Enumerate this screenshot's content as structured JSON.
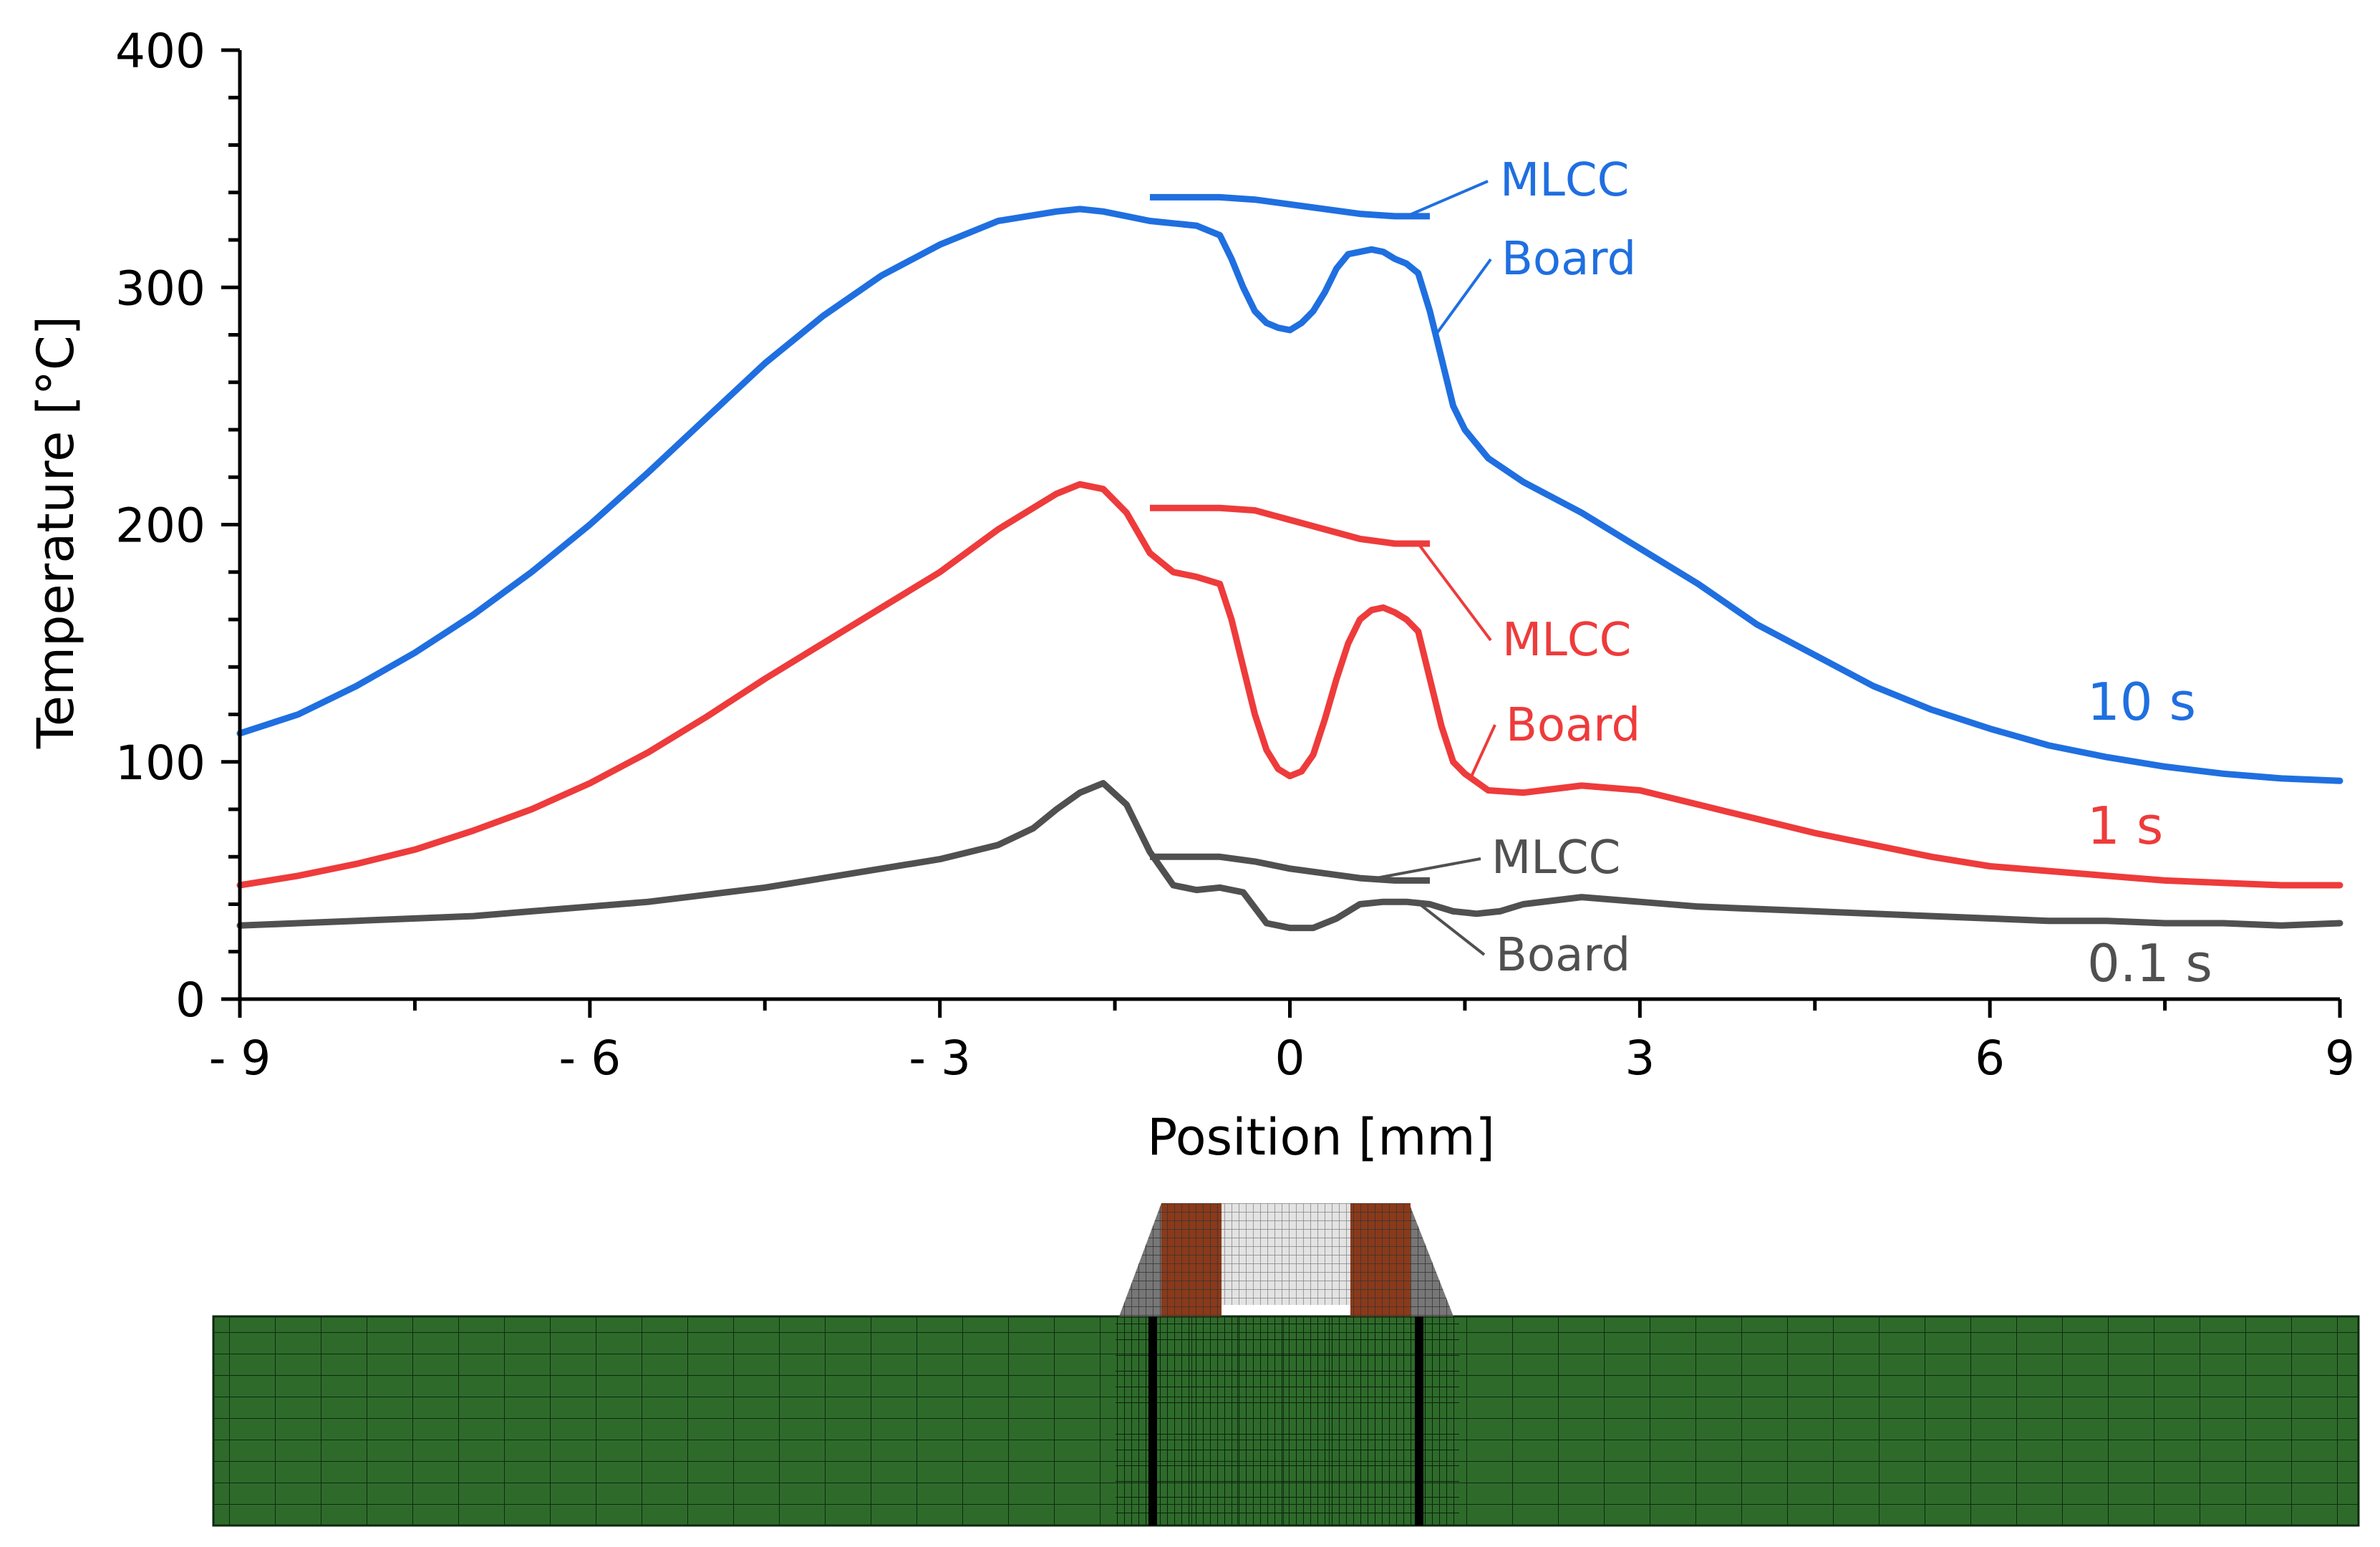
{
  "chart_data": {
    "type": "line",
    "title": "",
    "xlabel": "Position [mm]",
    "ylabel": "Temperature [°C]",
    "xlim": [
      -9,
      9
    ],
    "ylim": [
      0,
      400
    ],
    "grid": false,
    "x_ticks": [
      -9,
      -6,
      -3,
      0,
      3,
      6,
      9
    ],
    "x_tick_labels": [
      "- 9",
      "- 6",
      "- 3",
      "0",
      "3",
      "6",
      "9"
    ],
    "y_ticks": [
      0,
      100,
      200,
      300,
      400
    ],
    "y_tick_labels": [
      "0",
      "100",
      "200",
      "300",
      "400"
    ],
    "series": [
      {
        "name": "10 s",
        "color": "#1f6fe0",
        "board_label": "Board",
        "mlcc_label": "MLCC",
        "board": {
          "x": [
            -9,
            -8.5,
            -8,
            -7.5,
            -7,
            -6.5,
            -6,
            -5.5,
            -5,
            -4.5,
            -4,
            -3.5,
            -3,
            -2.5,
            -2,
            -1.8,
            -1.6,
            -1.4,
            -1.2,
            -1,
            -0.8,
            -0.6,
            -0.5,
            -0.4,
            -0.3,
            -0.2,
            -0.1,
            0,
            0.1,
            0.2,
            0.3,
            0.4,
            0.5,
            0.6,
            0.7,
            0.8,
            0.9,
            1.0,
            1.1,
            1.2,
            1.3,
            1.4,
            1.5,
            1.7,
            2,
            2.5,
            3,
            3.5,
            4,
            4.5,
            5,
            5.5,
            6,
            6.5,
            7,
            7.5,
            8,
            8.5,
            9
          ],
          "y": [
            112,
            120,
            132,
            146,
            162,
            180,
            200,
            222,
            245,
            268,
            288,
            305,
            318,
            328,
            332,
            333,
            332,
            330,
            328,
            327,
            326,
            322,
            312,
            300,
            290,
            285,
            283,
            282,
            285,
            290,
            298,
            308,
            314,
            315,
            316,
            315,
            312,
            310,
            306,
            290,
            270,
            250,
            240,
            228,
            218,
            205,
            190,
            175,
            158,
            145,
            132,
            122,
            114,
            107,
            102,
            98,
            95,
            93,
            92
          ]
        },
        "mlcc": {
          "x": [
            -1.2,
            -0.9,
            -0.6,
            -0.3,
            0,
            0.3,
            0.6,
            0.9,
            1.2
          ],
          "y": [
            338,
            338,
            338,
            337,
            335,
            333,
            331,
            330,
            330
          ]
        }
      },
      {
        "name": "1 s",
        "color": "#ee3b3b",
        "board_label": "Board",
        "mlcc_label": "MLCC",
        "board": {
          "x": [
            -9,
            -8.5,
            -8,
            -7.5,
            -7,
            -6.5,
            -6,
            -5.5,
            -5,
            -4.5,
            -4,
            -3.5,
            -3,
            -2.5,
            -2,
            -1.8,
            -1.6,
            -1.4,
            -1.2,
            -1.0,
            -0.8,
            -0.6,
            -0.5,
            -0.4,
            -0.3,
            -0.2,
            -0.1,
            0,
            0.1,
            0.2,
            0.3,
            0.4,
            0.5,
            0.6,
            0.7,
            0.8,
            0.9,
            1.0,
            1.1,
            1.2,
            1.3,
            1.4,
            1.5,
            1.7,
            2,
            2.5,
            3,
            3.5,
            4,
            4.5,
            5,
            5.5,
            6,
            6.5,
            7,
            7.5,
            8,
            8.5,
            9
          ],
          "y": [
            48,
            52,
            57,
            63,
            71,
            80,
            91,
            104,
            119,
            135,
            150,
            165,
            180,
            198,
            213,
            217,
            215,
            205,
            188,
            180,
            178,
            175,
            160,
            140,
            120,
            105,
            97,
            94,
            96,
            103,
            118,
            135,
            150,
            160,
            164,
            165,
            163,
            160,
            155,
            135,
            115,
            100,
            95,
            88,
            87,
            90,
            88,
            82,
            76,
            70,
            65,
            60,
            56,
            54,
            52,
            50,
            49,
            48,
            48
          ]
        },
        "mlcc": {
          "x": [
            -1.2,
            -0.9,
            -0.6,
            -0.3,
            0,
            0.3,
            0.6,
            0.9,
            1.2
          ],
          "y": [
            207,
            207,
            207,
            206,
            202,
            198,
            194,
            192,
            192
          ]
        }
      },
      {
        "name": "0.1 s",
        "color": "#505050",
        "board_label": "Board",
        "mlcc_label": "MLCC",
        "board": {
          "x": [
            -9,
            -8.5,
            -8,
            -7.5,
            -7,
            -6.5,
            -6,
            -5.5,
            -5,
            -4.5,
            -4,
            -3.5,
            -3,
            -2.5,
            -2.2,
            -2,
            -1.8,
            -1.6,
            -1.4,
            -1.2,
            -1.0,
            -0.8,
            -0.6,
            -0.4,
            -0.2,
            0,
            0.2,
            0.4,
            0.6,
            0.8,
            1.0,
            1.2,
            1.4,
            1.6,
            1.8,
            2,
            2.5,
            3,
            3.5,
            4,
            4.5,
            5,
            5.5,
            6,
            6.5,
            7,
            7.5,
            8,
            8.5,
            9
          ],
          "y": [
            31,
            32,
            33,
            34,
            35,
            37,
            39,
            41,
            44,
            47,
            51,
            55,
            59,
            65,
            72,
            80,
            87,
            91,
            82,
            62,
            48,
            46,
            47,
            45,
            32,
            30,
            30,
            34,
            40,
            41,
            41,
            40,
            37,
            36,
            37,
            40,
            43,
            41,
            39,
            38,
            37,
            36,
            35,
            34,
            33,
            33,
            32,
            32,
            31,
            32
          ]
        },
        "mlcc": {
          "x": [
            -1.2,
            -0.9,
            -0.6,
            -0.3,
            0,
            0.3,
            0.6,
            0.9,
            1.2
          ],
          "y": [
            60,
            60,
            60,
            58,
            55,
            53,
            51,
            50,
            50
          ]
        }
      }
    ]
  },
  "mesh": {
    "board_color": "#2e6b2b",
    "terminal_color": "#8a3a1a",
    "ceramic_color": "#e3e3e3"
  }
}
